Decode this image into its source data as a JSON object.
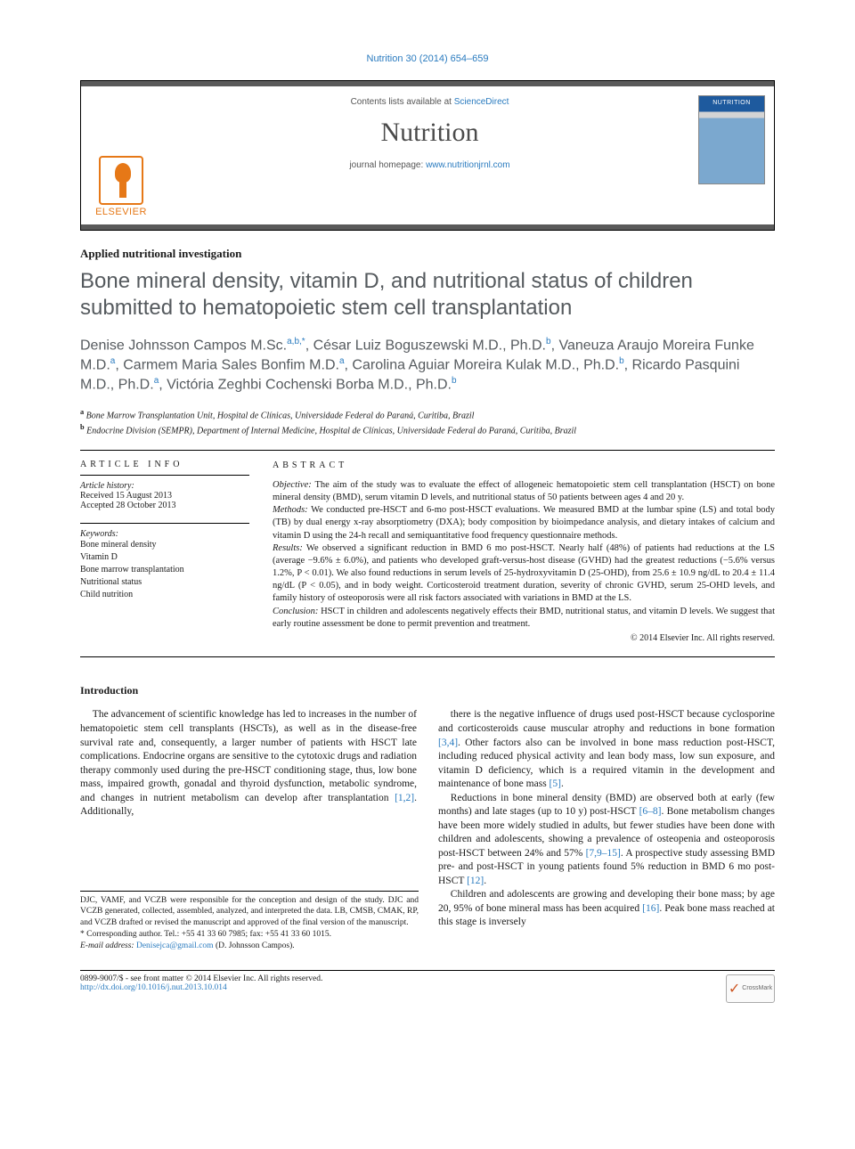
{
  "topref": "Nutrition 30 (2014) 654–659",
  "header": {
    "contents_pre": "Contents lists available at ",
    "contents_link": "ScienceDirect",
    "journal": "Nutrition",
    "homepage_pre": "journal homepage: ",
    "homepage_link": "www.nutritionjrnl.com",
    "elsevier": "ELSEVIER"
  },
  "article_type": "Applied nutritional investigation",
  "title": "Bone mineral density, vitamin D, and nutritional status of children submitted to hematopoietic stem cell transplantation",
  "authors_html": "Denise Johnsson Campos M.Sc.<sup>a,b,*</sup>, César Luiz Boguszewski M.D., Ph.D.<sup>b</sup>, Vaneuza Araujo Moreira Funke M.D.<sup>a</sup>, Carmem Maria Sales Bonfim M.D.<sup>a</sup>, Carolina Aguiar Moreira Kulak M.D., Ph.D.<sup>b</sup>, Ricardo Pasquini M.D., Ph.D.<sup>a</sup>, Victória Zeghbi Cochenski Borba M.D., Ph.D.<sup>b</sup>",
  "affiliations": {
    "a": "Bone Marrow Transplantation Unit, Hospital de Clínicas, Universidade Federal do Paraná, Curitiba, Brazil",
    "b": "Endocrine Division (SEMPR), Department of Internal Medicine, Hospital de Clínicas, Universidade Federal do Paraná, Curitiba, Brazil"
  },
  "article_info": {
    "head": "ARTICLE INFO",
    "history_label": "Article history:",
    "received": "Received 15 August 2013",
    "accepted": "Accepted 28 October 2013",
    "keywords_label": "Keywords:",
    "keywords": [
      "Bone mineral density",
      "Vitamin D",
      "Bone marrow transplantation",
      "Nutritional status",
      "Child nutrition"
    ]
  },
  "abstract": {
    "head": "ABSTRACT",
    "objective_label": "Objective:",
    "objective": " The aim of the study was to evaluate the effect of allogeneic hematopoietic stem cell transplantation (HSCT) on bone mineral density (BMD), serum vitamin D levels, and nutritional status of 50 patients between ages 4 and 20 y.",
    "methods_label": "Methods:",
    "methods": " We conducted pre-HSCT and 6-mo post-HSCT evaluations. We measured BMD at the lumbar spine (LS) and total body (TB) by dual energy x-ray absorptiometry (DXA); body composition by bioimpedance analysis, and dietary intakes of calcium and vitamin D using the 24-h recall and semiquantitative food frequency questionnaire methods.",
    "results_label": "Results:",
    "results": " We observed a significant reduction in BMD 6 mo post-HSCT. Nearly half (48%) of patients had reductions at the LS (average −9.6% ± 6.0%), and patients who developed graft-versus-host disease (GVHD) had the greatest reductions (−5.6% versus 1.2%, P < 0.01). We also found reductions in serum levels of 25-hydroxyvitamin D (25-OHD), from 25.6 ± 10.9 ng/dL to 20.4 ± 11.4 ng/dL (P < 0.05), and in body weight. Corticosteroid treatment duration, severity of chronic GVHD, serum 25-OHD levels, and family history of osteoporosis were all risk factors associated with variations in BMD at the LS.",
    "conclusion_label": "Conclusion:",
    "conclusion": " HSCT in children and adolescents negatively effects their BMD, nutritional status, and vitamin D levels. We suggest that early routine assessment be done to permit prevention and treatment.",
    "copyright": "© 2014 Elsevier Inc. All rights reserved."
  },
  "intro_head": "Introduction",
  "body": {
    "p1": "The advancement of scientific knowledge has led to increases in the number of hematopoietic stem cell transplants (HSCTs), as well as in the disease-free survival rate and, consequently, a larger number of patients with HSCT late complications. Endocrine organs are sensitive to the cytotoxic drugs and radiation therapy commonly used during the pre-HSCT conditioning stage, thus, low bone mass, impaired growth, gonadal and thyroid dysfunction, metabolic syndrome, and changes in nutrient metabolism can develop after transplantation ",
    "p1_ref": "[1,2]",
    "p1_tail": ". Additionally,",
    "p2": "there is the negative influence of drugs used post-HSCT because cyclosporine and corticosteroids cause muscular atrophy and reductions in bone formation ",
    "p2_ref": "[3,4]",
    "p2_mid": ". Other factors also can be involved in bone mass reduction post-HSCT, including reduced physical activity and lean body mass, low sun exposure, and vitamin D deficiency, which is a required vitamin in the development and maintenance of bone mass ",
    "p2_ref2": "[5]",
    "p2_tail": ".",
    "p3": "Reductions in bone mineral density (BMD) are observed both at early (few months) and late stages (up to 10 y) post-HSCT ",
    "p3_ref": "[6–8]",
    "p3_mid": ". Bone metabolism changes have been more widely studied in adults, but fewer studies have been done with children and adolescents, showing a prevalence of osteopenia and osteoporosis post-HSCT between 24% and 57% ",
    "p3_ref2": "[7,9–15]",
    "p3_mid2": ". A prospective study assessing BMD pre- and post-HSCT in young patients found 5% reduction in BMD 6 mo post-HSCT ",
    "p3_ref3": "[12]",
    "p3_tail": ".",
    "p4": "Children and adolescents are growing and developing their bone mass; by age 20, 95% of bone mineral mass has been acquired ",
    "p4_ref": "[16]",
    "p4_tail": ". Peak bone mass reached at this stage is inversely"
  },
  "footnotes": {
    "contrib": "DJC, VAMF, and VCZB were responsible for the conception and design of the study. DJC and VCZB generated, collected, assembled, analyzed, and interpreted the data. LB, CMSB, CMAK, RP, and VCZB drafted or revised the manuscript and approved of the final version of the manuscript.",
    "corr_label": "* Corresponding author. Tel.: ",
    "corr_tel": "+55 41 33 60 7985",
    "corr_fax_label": "; fax: ",
    "corr_fax": "+55 41 33 60 1015.",
    "email_label": "E-mail address: ",
    "email": "Denisejca@gmail.com",
    "email_tail": " (D. Johnsson Campos)."
  },
  "bottom": {
    "issn": "0899-9007/$ - see front matter © 2014 Elsevier Inc. All rights reserved.",
    "doi": "http://dx.doi.org/10.1016/j.nut.2013.10.014",
    "crossmark": "CrossMark"
  },
  "colors": {
    "link": "#2a7bbf",
    "heading_gray": "#555a5e",
    "elsevier_orange": "#e67817",
    "header_bar": "#5a5a5a"
  }
}
